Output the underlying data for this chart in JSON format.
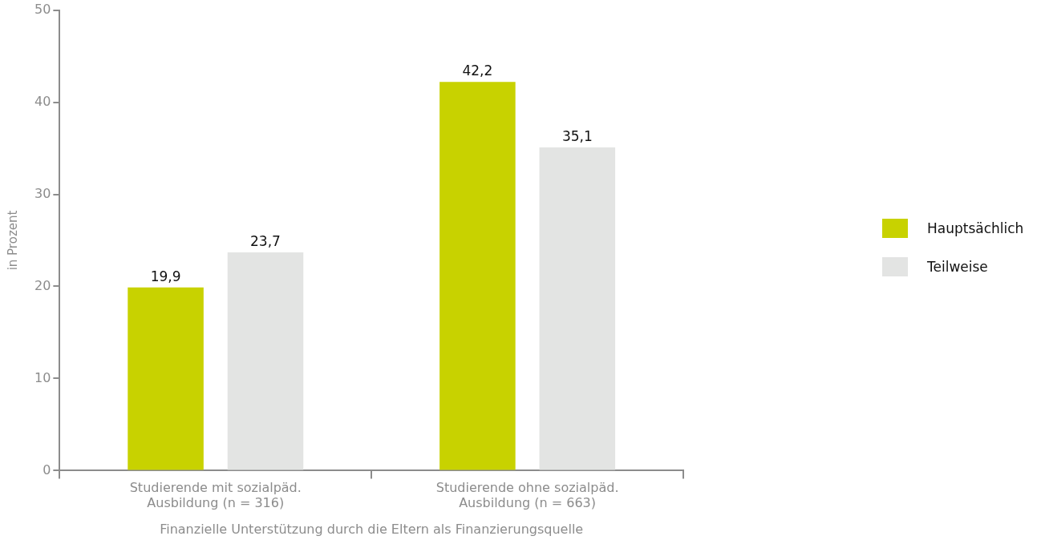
{
  "chart_data": {
    "type": "bar",
    "xlabel": "Finanzielle Unterstützung durch die Eltern als Finanzierungsquelle",
    "ylabel": "in Prozent",
    "categories": [
      "Studierende mit sozialpäd. Ausbildung (n = 316)",
      "Studierende ohne sozialpäd. Ausbildung (n = 663)"
    ],
    "series": [
      {
        "name": "Hauptsächlich",
        "color": "#c8d200",
        "values": [
          19.9,
          42.2
        ],
        "value_labels": [
          "19,9",
          "42,2"
        ]
      },
      {
        "name": "Teilweise",
        "color": "#e3e4e3",
        "values": [
          23.7,
          35.1
        ],
        "value_labels": [
          "23,7",
          "35,1"
        ]
      }
    ],
    "ylim": [
      0,
      50
    ],
    "yticks": [
      0,
      10,
      20,
      30,
      40,
      50
    ],
    "grid": false,
    "legend": "right"
  }
}
